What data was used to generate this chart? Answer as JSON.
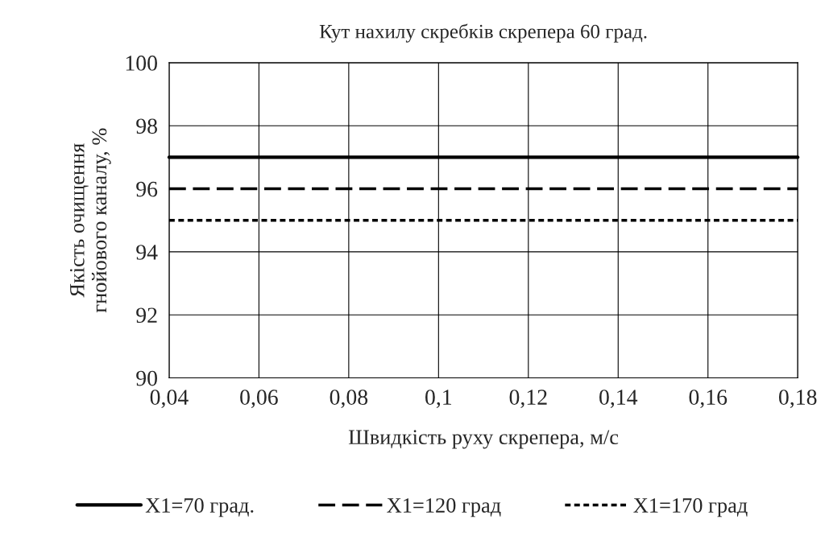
{
  "chart_data": {
    "type": "line",
    "title": "Кут нахилу скребків скрепера 60 град.",
    "xlabel": "Швидкість руху скрепера, м/с",
    "ylabel": "Якість очищення\nгнойового каналу, %",
    "x": [
      0.04,
      0.18
    ],
    "series": [
      {
        "name": "X1=70 град.",
        "color": "#000000",
        "line_style": "solid",
        "values": [
          97,
          97
        ]
      },
      {
        "name": "X1=120 град",
        "color": "#000000",
        "line_style": "dashed",
        "values": [
          96,
          96
        ]
      },
      {
        "name": "X1=170 град",
        "color": "#000000",
        "line_style": "dotted",
        "values": [
          95,
          95
        ]
      }
    ],
    "xlim": [
      0.04,
      0.18
    ],
    "xticks": [
      {
        "value": 0.04,
        "label": "0,04"
      },
      {
        "value": 0.06,
        "label": "0,06"
      },
      {
        "value": 0.08,
        "label": "0,08"
      },
      {
        "value": 0.1,
        "label": "0,1"
      },
      {
        "value": 0.12,
        "label": "0,12"
      },
      {
        "value": 0.14,
        "label": "0,14"
      },
      {
        "value": 0.16,
        "label": "0,16"
      },
      {
        "value": 0.18,
        "label": "0,18"
      }
    ],
    "ylim": [
      90,
      100
    ],
    "yticks": [
      90,
      92,
      94,
      96,
      98,
      100
    ],
    "grid": true,
    "legend": "bottom",
    "marker": "none"
  }
}
